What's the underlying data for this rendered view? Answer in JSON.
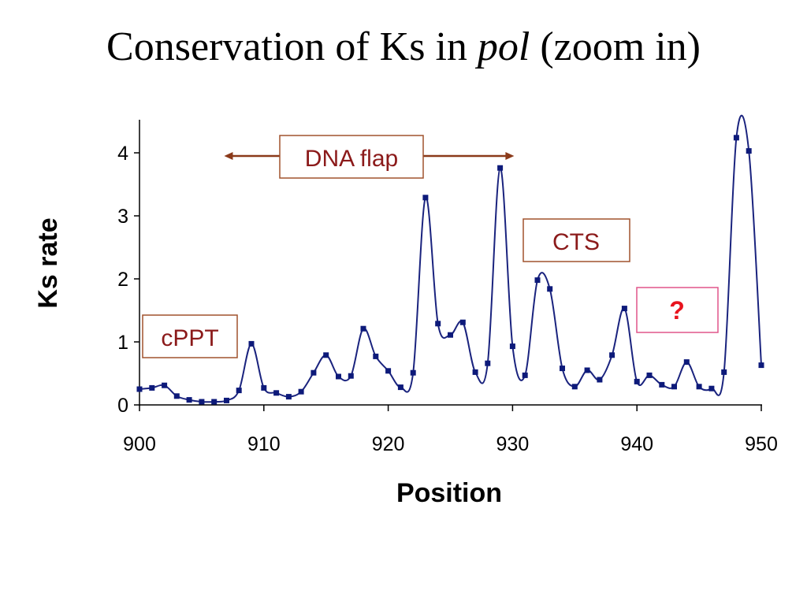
{
  "title": {
    "prefix": "Conservation of Ks in ",
    "italic": "pol",
    "suffix": " (zoom in)"
  },
  "colors": {
    "series_line": "#1a237e",
    "marker": "#0d1a7a",
    "annotation_text": "#8b1a1a",
    "annotation_border": "#a0522d",
    "arrow": "#8b3a1a",
    "question_border": "#e0558a",
    "question_text": "#e8141e"
  },
  "annotations": {
    "dna_flap": {
      "label": "DNA flap",
      "span": [
        907,
        930
      ]
    },
    "cts": {
      "label": "CTS"
    },
    "cppt": {
      "label": "cPPT"
    },
    "question": {
      "label": "?"
    }
  },
  "chart_data": {
    "type": "line",
    "xlabel": "Position",
    "ylabel": "Ks rate",
    "xlim": [
      900,
      950
    ],
    "ylim": [
      0,
      4.5
    ],
    "xticks": [
      "900",
      "910",
      "920",
      "930",
      "940",
      "950"
    ],
    "yticks": [
      "0",
      "1",
      "2",
      "3",
      "4"
    ],
    "grid": false,
    "smoothed": true,
    "markers": "square",
    "x": [
      900,
      901,
      902,
      903,
      904,
      905,
      906,
      907,
      908,
      909,
      910,
      911,
      912,
      913,
      914,
      915,
      916,
      917,
      918,
      919,
      920,
      921,
      922,
      923,
      924,
      925,
      926,
      927,
      928,
      929,
      930,
      931,
      932,
      933,
      934,
      935,
      936,
      937,
      938,
      939,
      940,
      941,
      942,
      943,
      944,
      945,
      946,
      947,
      948,
      949,
      950
    ],
    "y": [
      0.25,
      0.27,
      0.31,
      0.14,
      0.08,
      0.05,
      0.05,
      0.07,
      0.23,
      0.97,
      0.27,
      0.19,
      0.13,
      0.21,
      0.51,
      0.79,
      0.45,
      0.46,
      1.21,
      0.77,
      0.54,
      0.28,
      0.51,
      3.29,
      1.29,
      1.11,
      1.31,
      0.52,
      0.66,
      3.76,
      0.93,
      0.47,
      1.98,
      1.84,
      0.58,
      0.29,
      0.55,
      0.4,
      0.79,
      1.53,
      0.37,
      0.47,
      0.32,
      0.29,
      0.68,
      0.29,
      0.26,
      0.52,
      4.24,
      4.03,
      0.63
    ]
  }
}
